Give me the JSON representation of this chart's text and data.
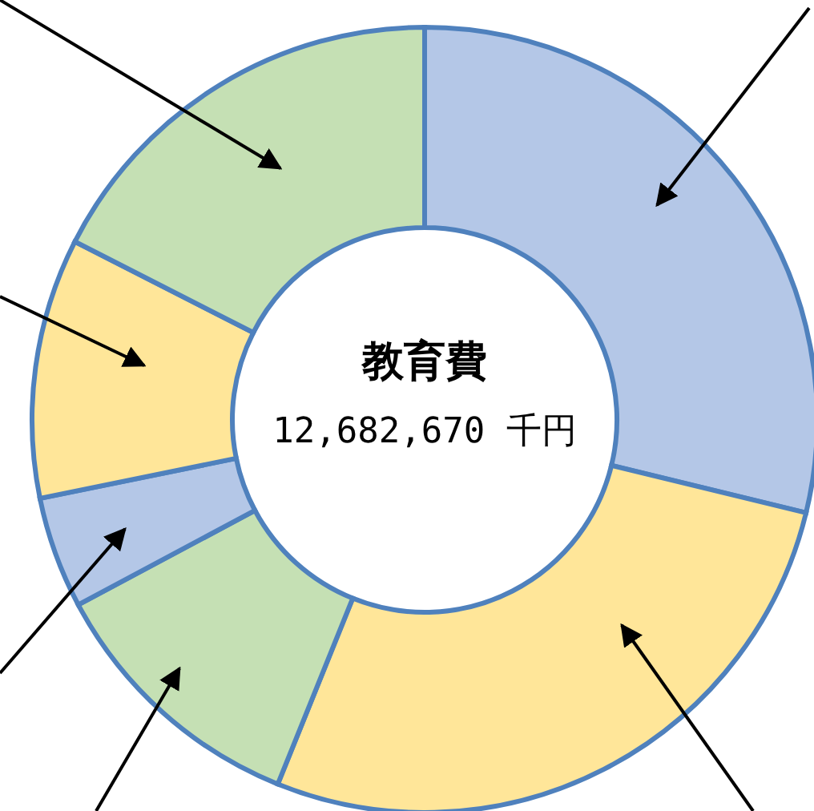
{
  "chart_data": {
    "type": "donut",
    "title": "教育費",
    "annotations": [
      "12,682,670 千円"
    ],
    "categories": [
      null,
      null,
      null,
      null,
      null,
      null
    ],
    "values": [
      28.8,
      27.3,
      11.1,
      4.6,
      10.7,
      17.5
    ],
    "colors": [
      "#b4c7e7",
      "#ffe699",
      "#c5e0b4",
      "#b4c7e7",
      "#ffe699",
      "#c5e0b4"
    ]
  }
}
